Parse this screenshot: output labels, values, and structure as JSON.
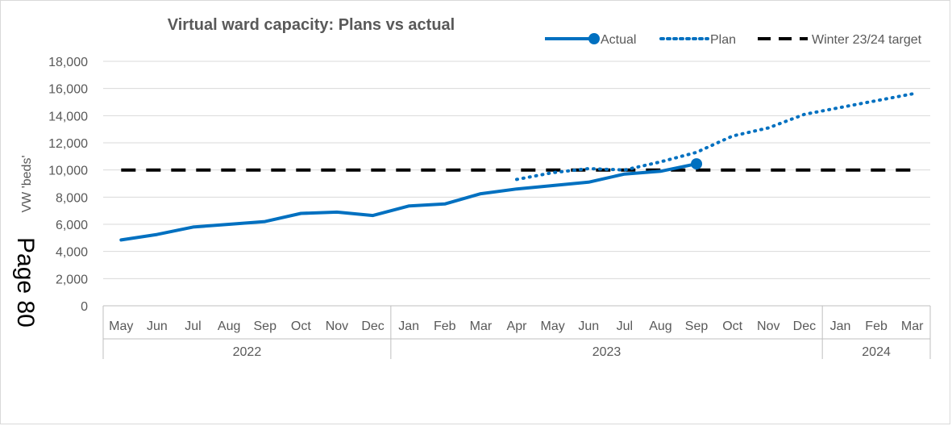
{
  "chart_data": {
    "type": "line",
    "title": "Virtual ward capacity: Plans vs actual",
    "ylabel": "VW 'beds'",
    "ylim": [
      0,
      18000
    ],
    "yticks": [
      0,
      2000,
      4000,
      6000,
      8000,
      10000,
      12000,
      14000,
      16000,
      18000
    ],
    "ytick_labels": [
      "0",
      "2,000",
      "4,000",
      "6,000",
      "8,000",
      "10,000",
      "12,000",
      "14,000",
      "16,000",
      "18,000"
    ],
    "categories": [
      "May",
      "Jun",
      "Jul",
      "Aug",
      "Sep",
      "Oct",
      "Nov",
      "Dec",
      "Jan",
      "Feb",
      "Mar",
      "Apr",
      "May",
      "Jun",
      "Jul",
      "Aug",
      "Sep",
      "Oct",
      "Nov",
      "Dec",
      "Jan",
      "Feb",
      "Mar"
    ],
    "year_groups": [
      {
        "label": "2022",
        "start": 0,
        "end": 7
      },
      {
        "label": "2023",
        "start": 8,
        "end": 19
      },
      {
        "label": "2024",
        "start": 20,
        "end": 22
      }
    ],
    "grid": true,
    "legend_position": "top-right",
    "series": [
      {
        "name": "Actual",
        "style": "solid",
        "color": "#0070c0",
        "values": [
          4850,
          5250,
          5800,
          6000,
          6200,
          6800,
          6900,
          6650,
          7350,
          7500,
          8250,
          8600,
          8850,
          9100,
          9700,
          9900,
          10450,
          null,
          null,
          null,
          null,
          null,
          null
        ]
      },
      {
        "name": "Plan",
        "style": "dotted",
        "color": "#0070c0",
        "values": [
          null,
          null,
          null,
          null,
          null,
          null,
          null,
          null,
          null,
          null,
          null,
          9300,
          9800,
          10100,
          10000,
          10600,
          11300,
          12500,
          13100,
          14100,
          14600,
          15100,
          15600
        ]
      },
      {
        "name": "Winter 23/24 target",
        "style": "dashed",
        "color": "#000000",
        "values": [
          10000,
          10000,
          10000,
          10000,
          10000,
          10000,
          10000,
          10000,
          10000,
          10000,
          10000,
          10000,
          10000,
          10000,
          10000,
          10000,
          10000,
          10000,
          10000,
          10000,
          10000,
          10000,
          10000
        ]
      }
    ]
  },
  "page_label": "Page 80"
}
